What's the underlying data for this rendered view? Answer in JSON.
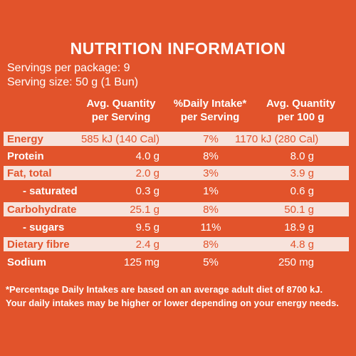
{
  "label": {
    "title": "NUTRITION INFORMATION",
    "servings_per_package": "Servings per package: 9",
    "serving_size": "Serving size: 50 g (1 Bun)"
  },
  "columns": {
    "avg_serving_line1": "Avg. Quantity",
    "avg_serving_line2": "per Serving",
    "daily_intake_line1": "%Daily Intake*",
    "daily_intake_line2": "per Serving",
    "avg_100g_line1": "Avg. Quantity",
    "avg_100g_line2": "per 100 g"
  },
  "rows": [
    {
      "nutrient": "Energy",
      "per_serving": "585 kJ (140 Cal)",
      "daily_intake": "7%",
      "per_100g": "1170 kJ (280 Cal)"
    },
    {
      "nutrient": "Protein",
      "per_serving": "4.0 g",
      "daily_intake": "8%",
      "per_100g": "8.0 g"
    },
    {
      "nutrient": "Fat, total",
      "per_serving": "2.0 g",
      "daily_intake": "3%",
      "per_100g": "3.9 g"
    },
    {
      "nutrient": "- saturated",
      "per_serving": "0.3 g",
      "daily_intake": "1%",
      "per_100g": "0.6 g"
    },
    {
      "nutrient": "Carbohydrate",
      "per_serving": "25.1 g",
      "daily_intake": "8%",
      "per_100g": "50.1 g"
    },
    {
      "nutrient": "- sugars",
      "per_serving": "9.5 g",
      "daily_intake": "11%",
      "per_100g": "18.9 g"
    },
    {
      "nutrient": "Dietary fibre",
      "per_serving": "2.4 g",
      "daily_intake": "8%",
      "per_100g": "4.8 g"
    },
    {
      "nutrient": "Sodium",
      "per_serving": "125 mg",
      "daily_intake": "5%",
      "per_100g": "250 mg"
    }
  ],
  "footnote": {
    "line1": "*Percentage Daily Intakes are based on an average adult diet of 8700 kJ.",
    "line2": "Your daily intakes may be higher or lower depending on your energy needs."
  },
  "colors": {
    "background": "#e2532b",
    "stripe": "#f7e3dc",
    "text_light": "#ffffff"
  }
}
